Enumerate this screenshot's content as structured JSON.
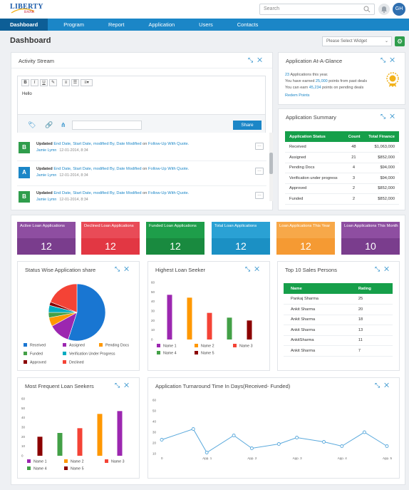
{
  "header": {
    "logo_text": "LIBERTY",
    "logo_sub": "BANK",
    "search_placeholder": "Search",
    "avatar_initials": "GH"
  },
  "nav": [
    "Dashboard",
    "Program",
    "Report",
    "Application",
    "Users",
    "Contacts"
  ],
  "page": {
    "title": "Dashboard",
    "widget_select": "Please Select Widget"
  },
  "activity": {
    "title": "Activity Stream",
    "editor_text": "Hello",
    "share_label": "Share",
    "items": [
      {
        "badge": "B",
        "color": "#2f9d4c",
        "verb": "Updated",
        "fields": "End Date, Start Date, modified By, Date Modified",
        "on": "on",
        "target": "Follow-Up With Quote.",
        "user": "Jamie Lymn",
        "time": "12-01-2014, 8:34"
      },
      {
        "badge": "A",
        "color": "#1b86c7",
        "verb": "Updated",
        "fields": "End Date, Start Date, modified By, Date Modified",
        "on": "on",
        "target": "Follow-Up With Quote.",
        "user": "Jamie Lymn",
        "time": "12-01-2014, 8:34"
      },
      {
        "badge": "B",
        "color": "#2f9d4c",
        "verb": "Updated",
        "fields": "End Date, Start Date, modified By, Date Modified",
        "on": "on",
        "target": "Follow-Up With Quote.",
        "user": "Jamie Lymn",
        "time": "12-01-2014, 8:34"
      }
    ]
  },
  "glance": {
    "title": "Application At-A-Glance",
    "line1_num": "23",
    "line1_text": "Applications this year.",
    "line2_pre": "You have earned",
    "line2_num": "25,000",
    "line2_post": "points from past deals",
    "line3_pre": "You can earn",
    "line3_num": "45,234",
    "line3_post": "points on pending deals",
    "link": "Redem Points"
  },
  "summary": {
    "title": "Application Summary",
    "headers": [
      "Application Status",
      "Count",
      "Total Finance"
    ],
    "rows": [
      [
        "Received",
        "48",
        "$1,063,000"
      ],
      [
        "Assigned",
        "21",
        "$852,000"
      ],
      [
        "Pending Docs",
        "4",
        "$94,000"
      ],
      [
        "Verification under progress",
        "3",
        "$94,000"
      ],
      [
        "Approved",
        "2",
        "$852,000"
      ],
      [
        "Funded",
        "2",
        "$852,000"
      ]
    ]
  },
  "stats": [
    {
      "label": "Active Loan Applications",
      "value": "12",
      "color": "#8e4ea1"
    },
    {
      "label": "Declined Loan Applications",
      "value": "12",
      "color": "#e94b57"
    },
    {
      "label": "Funded Loan Applications",
      "value": "12",
      "color": "#1e9e4a"
    },
    {
      "label": "Total Loan Applications",
      "value": "12",
      "color": "#2aa1d4"
    },
    {
      "label": "Loan Applications This Year",
      "value": "12",
      "color": "#f7a849"
    },
    {
      "label": "Loan Applications This Month",
      "value": "10",
      "color": "#8e4ea1"
    }
  ],
  "status_share": {
    "title": "Status Wise Application share",
    "legend": [
      "Received",
      "Assigned",
      "Pending Docs",
      "Funded",
      "Verification Under Progress",
      "Approved",
      "Declined"
    ]
  },
  "highest": {
    "title": "Highest Loan Seeker",
    "legend": [
      "Name 1",
      "Name 2",
      "Name 3",
      "Name 4",
      "Name 5"
    ]
  },
  "top10": {
    "title": "Top 10 Sales Persons",
    "headers": [
      "Name",
      "Rating"
    ],
    "rows": [
      [
        "Pankaj Sharma",
        "25"
      ],
      [
        "Ankit Sharma",
        "20"
      ],
      [
        "Ankit Sharma",
        "18"
      ],
      [
        "Ankit Sharma",
        "13"
      ],
      [
        "AnkitSharma",
        "11"
      ],
      [
        "Ankit Sharma",
        "7"
      ]
    ]
  },
  "frequent": {
    "title": "Most Frequent Loan Seekers",
    "legend": [
      "Name 1",
      "Name 2",
      "Name 3",
      "Name 4",
      "Name 5"
    ]
  },
  "turnaround": {
    "title": "Application Turnaround Time In Days(Received- Funded)"
  },
  "chart_data": [
    {
      "type": "pie",
      "title": "Status Wise Application share",
      "categories": [
        "Received",
        "Assigned",
        "Pending Docs",
        "Funded",
        "Verification Under Progress",
        "Approved",
        "Declined"
      ],
      "values": [
        55,
        12,
        5,
        3,
        4,
        2,
        19
      ],
      "colors": [
        "#1976d2",
        "#9c27b0",
        "#ff9800",
        "#43a047",
        "#00acc1",
        "#8b0000",
        "#f44336"
      ]
    },
    {
      "type": "bar",
      "title": "Highest Loan Seeker",
      "categories": [
        "Name 1",
        "Name 2",
        "Name 3",
        "Name 4",
        "Name 5"
      ],
      "values": [
        47,
        44,
        28,
        23,
        20
      ],
      "colors": [
        "#9c27b0",
        "#ff9800",
        "#f44336",
        "#43a047",
        "#8b0000"
      ],
      "ylim": [
        0,
        60
      ],
      "yticks": [
        0,
        10,
        20,
        30,
        40,
        50,
        60
      ]
    },
    {
      "type": "bar",
      "title": "Most Frequent Loan Seekers",
      "categories": [
        "Name 1",
        "Name 2",
        "Name 3",
        "Name 4",
        "Name 5"
      ],
      "values": [
        20,
        24,
        29,
        44,
        47
      ],
      "colors": [
        "#8b0000",
        "#43a047",
        "#f44336",
        "#ff9800",
        "#9c27b0"
      ],
      "ylim": [
        0,
        60
      ],
      "yticks": [
        0,
        10,
        20,
        30,
        40,
        50,
        60
      ]
    },
    {
      "type": "line",
      "title": "Application Turnaround Time In Days(Received- Funded)",
      "x": [
        "0",
        "App. 1",
        "App. 2",
        "App. 3",
        "App. 4",
        "App. 5"
      ],
      "x_values": [
        0,
        0.7,
        1,
        1.6,
        2,
        2.6,
        3,
        3.6,
        4,
        4.5,
        5
      ],
      "values": [
        23,
        33,
        11,
        27,
        15,
        19,
        25,
        21,
        17,
        30,
        17
      ],
      "ylim": [
        10,
        60
      ],
      "yticks": [
        10,
        20,
        30,
        40,
        50,
        60
      ],
      "color": "#5aa9dc"
    }
  ]
}
